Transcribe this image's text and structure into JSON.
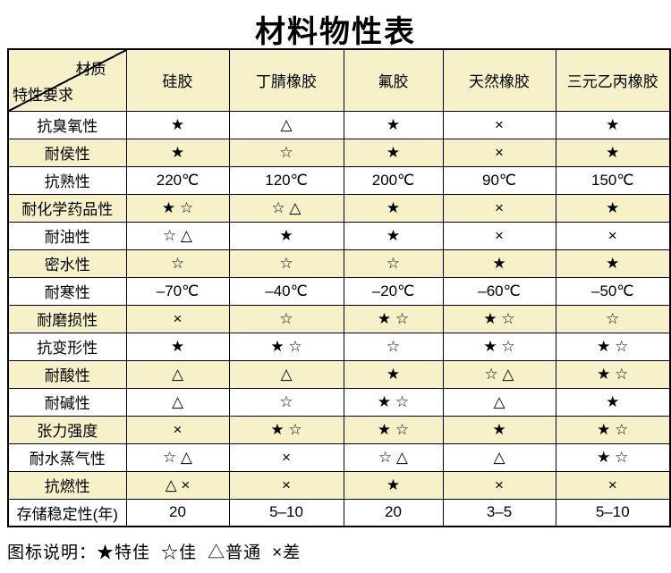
{
  "title": "材料物性表",
  "chart_data": {
    "type": "table",
    "title": "材料物性表",
    "corner": {
      "top_right": "材质",
      "bottom_left": "特性要求"
    },
    "columns": [
      "硅胶",
      "丁腈橡胶",
      "氟胶",
      "天然橡胶",
      "三元乙丙橡胶"
    ],
    "rows": [
      {
        "label": "抗臭氧性",
        "values": [
          "★",
          "△",
          "★",
          "×",
          "★"
        ]
      },
      {
        "label": "耐侯性",
        "values": [
          "★",
          "☆",
          "★",
          "×",
          "★"
        ]
      },
      {
        "label": "抗熟性",
        "values": [
          "220℃",
          "120℃",
          "200℃",
          "90℃",
          "150℃"
        ]
      },
      {
        "label": "耐化学药品性",
        "values": [
          "★ ☆",
          "☆ △",
          "★",
          "×",
          "★"
        ]
      },
      {
        "label": "耐油性",
        "values": [
          "☆ △",
          "★",
          "★",
          "×",
          "×"
        ]
      },
      {
        "label": "密水性",
        "values": [
          "☆",
          "☆",
          "☆",
          "★",
          "★"
        ]
      },
      {
        "label": "耐寒性",
        "values": [
          "–70℃",
          "–40℃",
          "–20℃",
          "–60℃",
          "–50℃"
        ]
      },
      {
        "label": "耐磨损性",
        "values": [
          "×",
          "☆",
          "★ ☆",
          "★ ☆",
          "☆"
        ]
      },
      {
        "label": "抗变形性",
        "values": [
          "★",
          "★ ☆",
          "☆",
          "★ ☆",
          "★ ☆"
        ]
      },
      {
        "label": "耐酸性",
        "values": [
          "△",
          "△",
          "★",
          "☆ △",
          "★ ☆"
        ]
      },
      {
        "label": "耐碱性",
        "values": [
          "△",
          "☆",
          "★ ☆",
          "△",
          "★"
        ]
      },
      {
        "label": "张力强度",
        "values": [
          "×",
          "★ ☆",
          "★ ☆",
          "★",
          "★ ☆"
        ]
      },
      {
        "label": "耐水蒸气性",
        "values": [
          "☆ △",
          "×",
          "☆ △",
          "△",
          "★ ☆"
        ]
      },
      {
        "label": "抗燃性",
        "values": [
          "△ ×",
          "×",
          "★",
          "×",
          "×"
        ]
      },
      {
        "label": "存储稳定性(年)",
        "values": [
          "20",
          "5–10",
          "20",
          "3–5",
          "5–10"
        ]
      }
    ]
  },
  "legend": {
    "prefix": "图标说明：",
    "items": [
      {
        "symbol": "★",
        "label": "特佳"
      },
      {
        "symbol": "☆",
        "label": "佳"
      },
      {
        "symbol": "△",
        "label": "普通"
      },
      {
        "symbol": "×",
        "label": "差"
      }
    ]
  },
  "colors": {
    "row_alt_background": "#F6F1C9",
    "border": "#000000",
    "text": "#000000",
    "page_background": "#FFFFFF"
  }
}
